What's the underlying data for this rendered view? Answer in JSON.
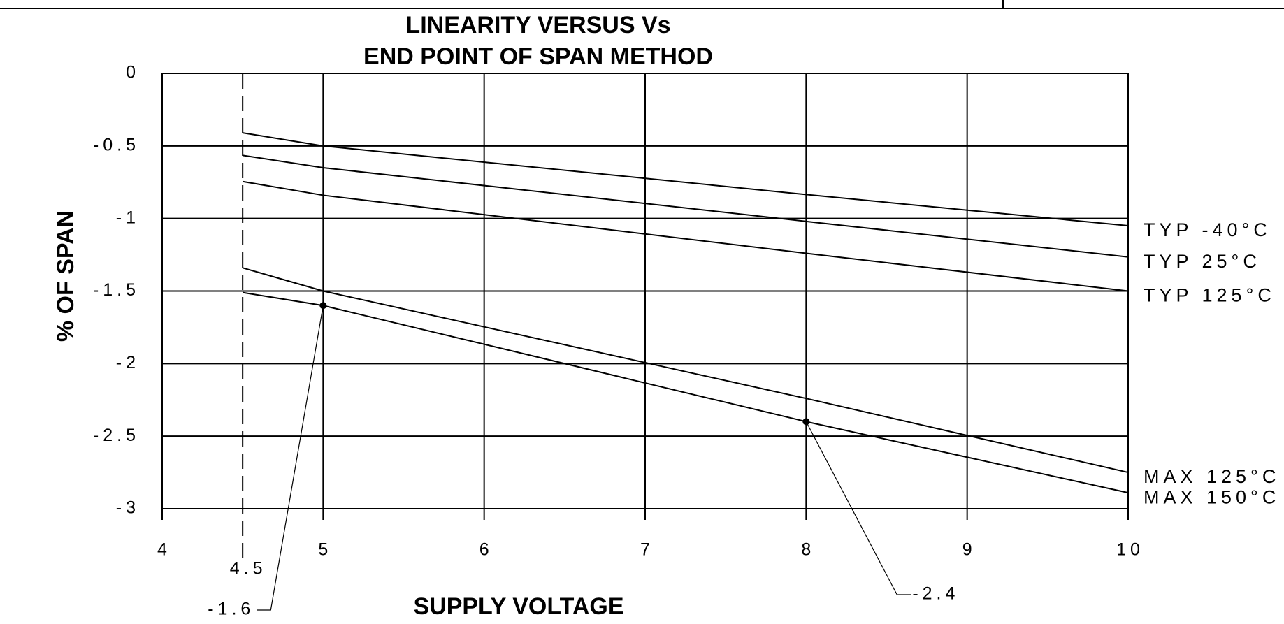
{
  "chart_data": {
    "type": "line",
    "title": "LINEARITY VERSUS Vs",
    "subtitle": "END POINT OF SPAN METHOD",
    "x_label": "SUPPLY VOLTAGE",
    "y_label": "% OF SPAN",
    "x": [
      4.5,
      5,
      8,
      10
    ],
    "series": [
      {
        "name": "TYP -40°C",
        "color": "#000000",
        "values": [
          -0.41,
          -0.5,
          -0.835,
          -1.05
        ]
      },
      {
        "name": "TYP 25°C",
        "color": "#000000",
        "values": [
          -0.565,
          -0.65,
          -1.02,
          -1.265
        ]
      },
      {
        "name": "TYP 125°C",
        "color": "#000000",
        "values": [
          -0.745,
          -0.84,
          -1.24,
          -1.5
        ]
      },
      {
        "name": "MAX 125°C",
        "color": "#000000",
        "values": [
          -1.34,
          -1.5,
          -2.24,
          -2.75
        ]
      },
      {
        "name": "MAX 150°C",
        "color": "#000000",
        "values": [
          -1.51,
          -1.6,
          -2.4,
          -2.89
        ]
      }
    ],
    "xlim": [
      4,
      10
    ],
    "xticks": [
      4,
      5,
      6,
      7,
      8,
      9,
      10
    ],
    "ylim": [
      -3,
      0
    ],
    "yticks": [
      0,
      -0.5,
      -1,
      -1.5,
      -2,
      -2.5,
      -3
    ],
    "grid": true,
    "vline": 4.5,
    "annotations": [
      {
        "x": 5,
        "y": -1.6
      },
      {
        "x": 8,
        "y": -2.4
      }
    ]
  }
}
